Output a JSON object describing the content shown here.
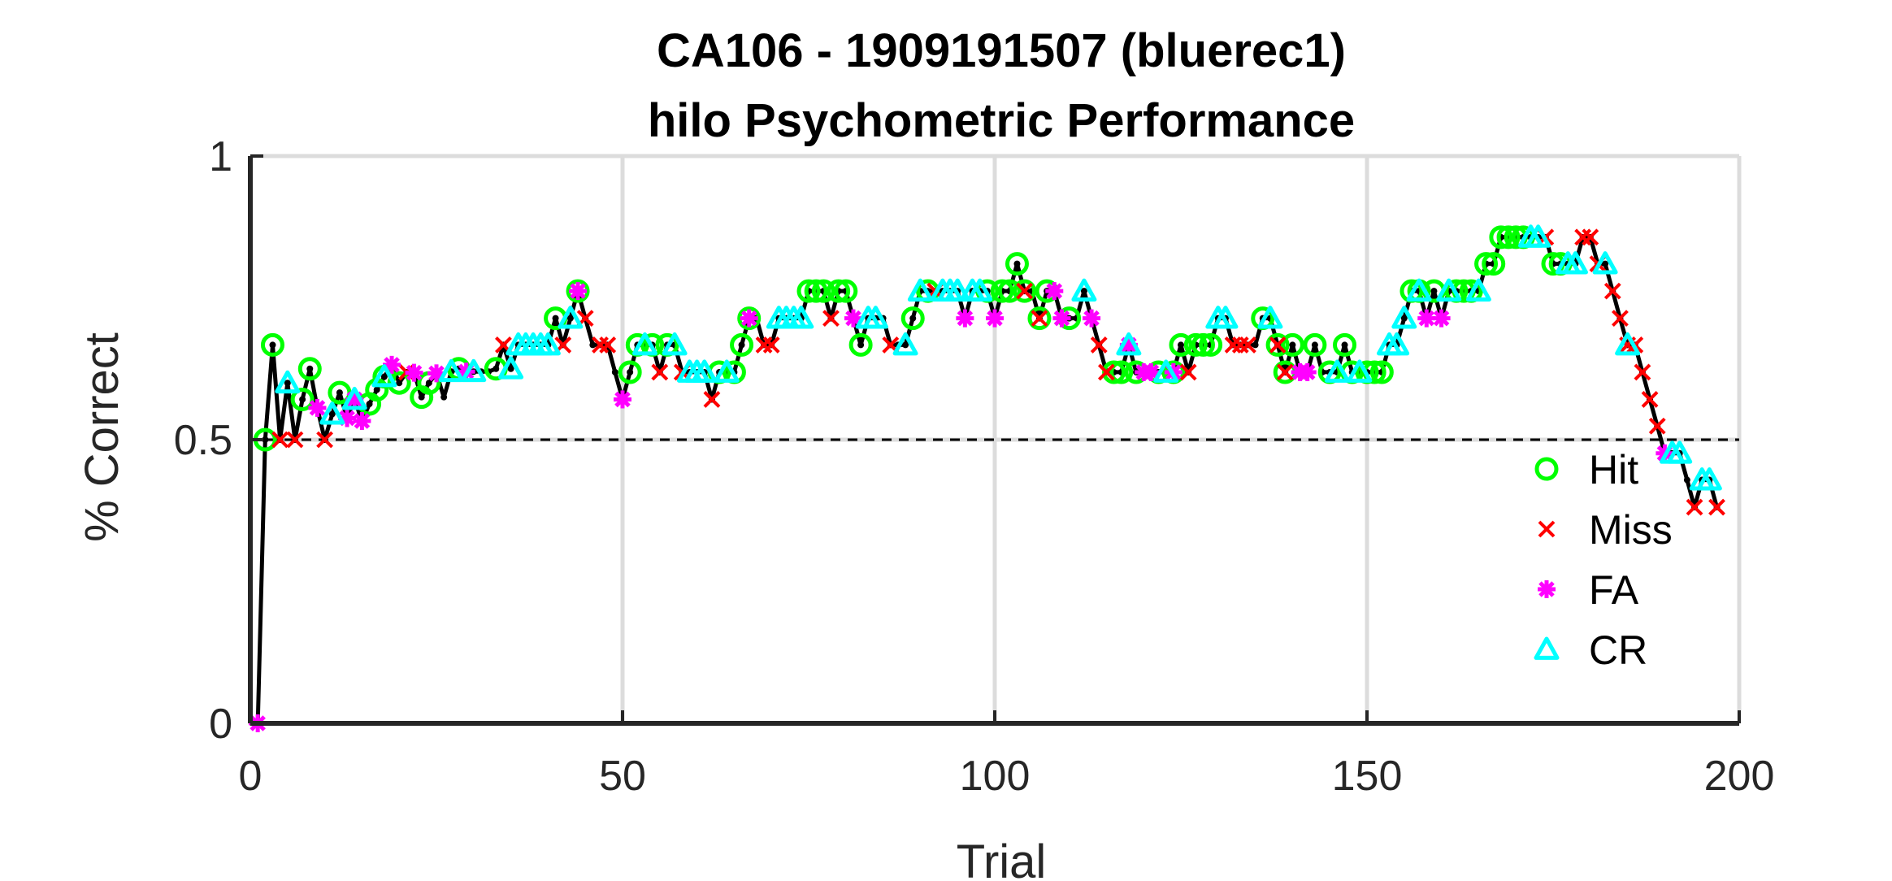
{
  "chart_data": {
    "type": "line",
    "title": "CA106 - 1909191507 (bluerec1)",
    "subtitle": "hilo Psychometric Performance",
    "xlabel": "Trial",
    "ylabel": "% Correct",
    "xlim": [
      0,
      200
    ],
    "ylim": [
      0,
      1
    ],
    "xticks": [
      0,
      50,
      100,
      150,
      200
    ],
    "xtick_labels": [
      "0",
      "50",
      "100",
      "150",
      "200"
    ],
    "yticks": [
      0,
      0.5,
      1
    ],
    "ytick_labels": [
      "0",
      "0.5",
      "1"
    ],
    "grid": true,
    "reference_line": {
      "y": 0.5,
      "style": "dashed"
    },
    "legend_position": "bottom-right",
    "colors": {
      "hit": "#00ff00",
      "miss": "#ff0000",
      "fa": "#ff00ff",
      "cr": "#00ffff",
      "line": "#000000"
    },
    "performance": [
      [
        1,
        0.0
      ],
      [
        2,
        0.5
      ],
      [
        3,
        0.667
      ],
      [
        4,
        0.5
      ],
      [
        5,
        0.6
      ],
      [
        6,
        0.5
      ],
      [
        7,
        0.571
      ],
      [
        8,
        0.625
      ],
      [
        9,
        0.556
      ],
      [
        10,
        0.5
      ],
      [
        11,
        0.545
      ],
      [
        12,
        0.583
      ],
      [
        13,
        0.538
      ],
      [
        14,
        0.571
      ],
      [
        15,
        0.533
      ],
      [
        16,
        0.563
      ],
      [
        17,
        0.588
      ],
      [
        18,
        0.611
      ],
      [
        19,
        0.632
      ],
      [
        20,
        0.6
      ],
      [
        21,
        0.619
      ],
      [
        22,
        0.618
      ],
      [
        23,
        0.575
      ],
      [
        24,
        0.6
      ],
      [
        25,
        0.617
      ],
      [
        26,
        0.575
      ],
      [
        27,
        0.62
      ],
      [
        28,
        0.625
      ],
      [
        29,
        0.62
      ],
      [
        30,
        0.62
      ],
      [
        31,
        0.62
      ],
      [
        32,
        0.62
      ],
      [
        33,
        0.625
      ],
      [
        34,
        0.667
      ],
      [
        35,
        0.625
      ],
      [
        36,
        0.667
      ],
      [
        37,
        0.667
      ],
      [
        38,
        0.667
      ],
      [
        39,
        0.667
      ],
      [
        40,
        0.667
      ],
      [
        41,
        0.714
      ],
      [
        42,
        0.667
      ],
      [
        43,
        0.714
      ],
      [
        44,
        0.762
      ],
      [
        45,
        0.714
      ],
      [
        46,
        0.667
      ],
      [
        47,
        0.667
      ],
      [
        48,
        0.667
      ],
      [
        49,
        0.619
      ],
      [
        50,
        0.571
      ],
      [
        51,
        0.619
      ],
      [
        52,
        0.667
      ],
      [
        53,
        0.667
      ],
      [
        54,
        0.667
      ],
      [
        55,
        0.619
      ],
      [
        56,
        0.667
      ],
      [
        57,
        0.667
      ],
      [
        58,
        0.619
      ],
      [
        59,
        0.619
      ],
      [
        60,
        0.619
      ],
      [
        61,
        0.619
      ],
      [
        62,
        0.571
      ],
      [
        63,
        0.619
      ],
      [
        64,
        0.619
      ],
      [
        65,
        0.619
      ],
      [
        66,
        0.667
      ],
      [
        67,
        0.714
      ],
      [
        68,
        0.714
      ],
      [
        69,
        0.667
      ],
      [
        70,
        0.667
      ],
      [
        71,
        0.714
      ],
      [
        72,
        0.714
      ],
      [
        73,
        0.714
      ],
      [
        74,
        0.714
      ],
      [
        75,
        0.762
      ],
      [
        76,
        0.762
      ],
      [
        77,
        0.762
      ],
      [
        78,
        0.714
      ],
      [
        79,
        0.762
      ],
      [
        80,
        0.762
      ],
      [
        81,
        0.714
      ],
      [
        82,
        0.667
      ],
      [
        83,
        0.714
      ],
      [
        84,
        0.714
      ],
      [
        85,
        0.714
      ],
      [
        86,
        0.667
      ],
      [
        87,
        0.667
      ],
      [
        88,
        0.667
      ],
      [
        89,
        0.714
      ],
      [
        90,
        0.762
      ],
      [
        91,
        0.762
      ],
      [
        92,
        0.762
      ],
      [
        93,
        0.762
      ],
      [
        94,
        0.762
      ],
      [
        95,
        0.762
      ],
      [
        96,
        0.714
      ],
      [
        97,
        0.762
      ],
      [
        98,
        0.762
      ],
      [
        99,
        0.762
      ],
      [
        100,
        0.714
      ],
      [
        101,
        0.762
      ],
      [
        102,
        0.762
      ],
      [
        103,
        0.81
      ],
      [
        104,
        0.762
      ],
      [
        105,
        0.762
      ],
      [
        106,
        0.714
      ],
      [
        107,
        0.762
      ],
      [
        108,
        0.762
      ],
      [
        109,
        0.714
      ],
      [
        110,
        0.714
      ],
      [
        111,
        0.714
      ],
      [
        112,
        0.762
      ],
      [
        113,
        0.714
      ],
      [
        114,
        0.667
      ],
      [
        115,
        0.619
      ],
      [
        116,
        0.619
      ],
      [
        117,
        0.619
      ],
      [
        118,
        0.667
      ],
      [
        119,
        0.619
      ],
      [
        120,
        0.619
      ],
      [
        121,
        0.619
      ],
      [
        122,
        0.619
      ],
      [
        123,
        0.619
      ],
      [
        124,
        0.619
      ],
      [
        125,
        0.667
      ],
      [
        126,
        0.619
      ],
      [
        127,
        0.667
      ],
      [
        128,
        0.667
      ],
      [
        129,
        0.667
      ],
      [
        130,
        0.714
      ],
      [
        131,
        0.714
      ],
      [
        132,
        0.667
      ],
      [
        133,
        0.667
      ],
      [
        134,
        0.667
      ],
      [
        135,
        0.667
      ],
      [
        136,
        0.714
      ],
      [
        137,
        0.714
      ],
      [
        138,
        0.667
      ],
      [
        139,
        0.619
      ],
      [
        140,
        0.667
      ],
      [
        141,
        0.619
      ],
      [
        142,
        0.619
      ],
      [
        143,
        0.667
      ],
      [
        144,
        0.619
      ],
      [
        145,
        0.619
      ],
      [
        146,
        0.619
      ],
      [
        147,
        0.667
      ],
      [
        148,
        0.619
      ],
      [
        149,
        0.619
      ],
      [
        150,
        0.619
      ],
      [
        151,
        0.619
      ],
      [
        152,
        0.619
      ],
      [
        153,
        0.667
      ],
      [
        154,
        0.667
      ],
      [
        155,
        0.714
      ],
      [
        156,
        0.762
      ],
      [
        157,
        0.762
      ],
      [
        158,
        0.714
      ],
      [
        159,
        0.762
      ],
      [
        160,
        0.714
      ],
      [
        161,
        0.762
      ],
      [
        162,
        0.762
      ],
      [
        163,
        0.762
      ],
      [
        164,
        0.762
      ],
      [
        165,
        0.762
      ],
      [
        166,
        0.81
      ],
      [
        167,
        0.81
      ],
      [
        168,
        0.857
      ],
      [
        169,
        0.857
      ],
      [
        170,
        0.857
      ],
      [
        171,
        0.857
      ],
      [
        172,
        0.857
      ],
      [
        173,
        0.857
      ],
      [
        174,
        0.857
      ],
      [
        175,
        0.81
      ],
      [
        176,
        0.81
      ],
      [
        177,
        0.81
      ],
      [
        178,
        0.81
      ],
      [
        179,
        0.857
      ],
      [
        180,
        0.857
      ],
      [
        181,
        0.81
      ],
      [
        182,
        0.81
      ],
      [
        183,
        0.762
      ],
      [
        184,
        0.714
      ],
      [
        185,
        0.667
      ],
      [
        186,
        0.667
      ],
      [
        187,
        0.619
      ],
      [
        188,
        0.571
      ],
      [
        189,
        0.524
      ],
      [
        190,
        0.476
      ],
      [
        191,
        0.476
      ],
      [
        192,
        0.476
      ],
      [
        193,
        0.429
      ],
      [
        194,
        0.381
      ],
      [
        195,
        0.429
      ],
      [
        196,
        0.429
      ],
      [
        197,
        0.381
      ]
    ],
    "series": [
      {
        "name": "Hit",
        "marker": "circle",
        "color": "#00ff00",
        "x": [
          2,
          3,
          7,
          8,
          12,
          16,
          17,
          18,
          20,
          23,
          24,
          28,
          33,
          41,
          44,
          51,
          52,
          54,
          56,
          63,
          65,
          66,
          67,
          75,
          76,
          77,
          79,
          80,
          82,
          89,
          91,
          99,
          101,
          102,
          103,
          104,
          106,
          107,
          110,
          116,
          117,
          119,
          122,
          124,
          125,
          127,
          128,
          129,
          136,
          138,
          139,
          140,
          143,
          145,
          147,
          148,
          150,
          151,
          152,
          156,
          157,
          159,
          162,
          163,
          164,
          166,
          167,
          168,
          169,
          170,
          171,
          175,
          176
        ]
      },
      {
        "name": "Miss",
        "marker": "x",
        "color": "#ff0000",
        "x": [
          4,
          6,
          10,
          21,
          34,
          42,
          45,
          47,
          48,
          55,
          58,
          62,
          69,
          70,
          78,
          86,
          92,
          104,
          106,
          114,
          115,
          126,
          132,
          133,
          134,
          138,
          139,
          174,
          179,
          180,
          181,
          183,
          184,
          185,
          186,
          187,
          188,
          189,
          194,
          197
        ]
      },
      {
        "name": "FA",
        "marker": "asterisk",
        "color": "#ff00ff",
        "x": [
          1,
          9,
          13,
          14,
          15,
          19,
          22,
          25,
          29,
          44,
          50,
          67,
          81,
          96,
          100,
          108,
          109,
          113,
          118,
          120,
          121,
          124,
          141,
          142,
          158,
          160,
          190
        ]
      },
      {
        "name": "CR",
        "marker": "triangle",
        "color": "#00ffff",
        "x": [
          5,
          11,
          14,
          18,
          27,
          30,
          35,
          36,
          37,
          38,
          39,
          40,
          43,
          53,
          57,
          59,
          60,
          61,
          64,
          71,
          72,
          73,
          74,
          83,
          84,
          88,
          90,
          93,
          94,
          95,
          97,
          98,
          112,
          118,
          123,
          130,
          131,
          137,
          146,
          149,
          153,
          154,
          155,
          157,
          161,
          165,
          172,
          173,
          177,
          178,
          182,
          185,
          191,
          192,
          195,
          196
        ]
      }
    ]
  }
}
